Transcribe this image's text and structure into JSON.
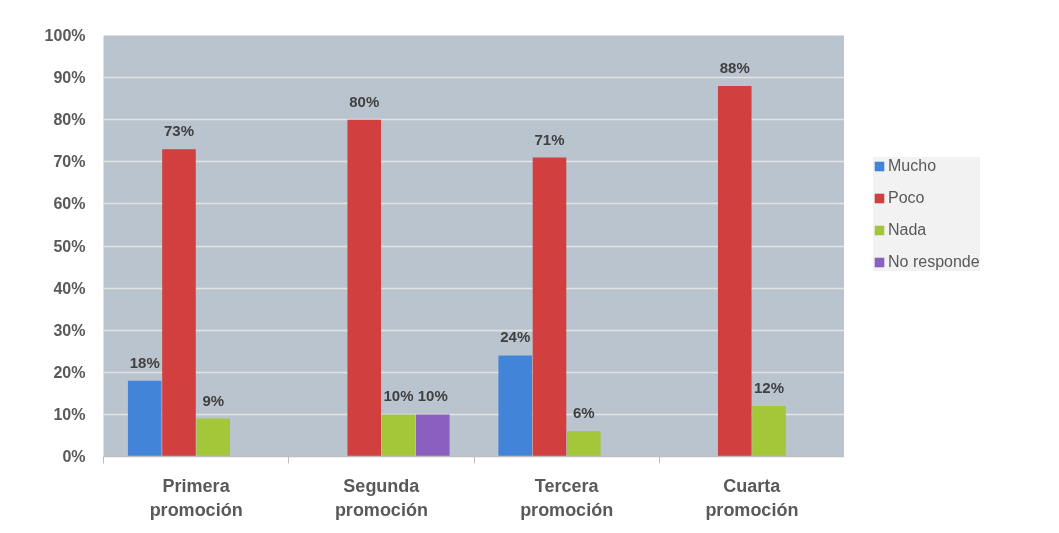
{
  "chart_data": {
    "type": "bar",
    "categories": [
      "Primera promoción",
      "Segunda promoción",
      "Tercera promoción",
      "Cuarta promoción"
    ],
    "series": [
      {
        "name": "Mucho",
        "color": "#4285d8",
        "values": [
          18,
          null,
          24,
          null
        ],
        "value_labels": [
          "18%",
          null,
          "24%",
          null
        ]
      },
      {
        "name": "Poco",
        "color": "#d13f3f",
        "values": [
          73,
          80,
          71,
          88
        ],
        "value_labels": [
          "73%",
          "80%",
          "71%",
          "88%"
        ]
      },
      {
        "name": "Nada",
        "color": "#a4c639",
        "values": [
          9,
          10,
          6,
          12
        ],
        "value_labels": [
          "9%",
          "10%",
          "6%",
          "12%"
        ]
      },
      {
        "name": "No responde",
        "color": "#8b5fbf",
        "values": [
          null,
          10,
          null,
          null
        ],
        "value_labels": [
          null,
          "10%",
          null,
          null
        ]
      }
    ],
    "ylim": [
      0,
      100
    ],
    "yticks": [
      {
        "value": 0,
        "label": "0%"
      },
      {
        "value": 10,
        "label": "10%"
      },
      {
        "value": 20,
        "label": "20%"
      },
      {
        "value": 30,
        "label": "30%"
      },
      {
        "value": 40,
        "label": "40%"
      },
      {
        "value": 50,
        "label": "50%"
      },
      {
        "value": 60,
        "label": "60%"
      },
      {
        "value": 70,
        "label": "70%"
      },
      {
        "value": 80,
        "label": "80%"
      },
      {
        "value": 90,
        "label": "90%"
      },
      {
        "value": 100,
        "label": "100%"
      }
    ],
    "grid": "y",
    "legend": "right"
  }
}
